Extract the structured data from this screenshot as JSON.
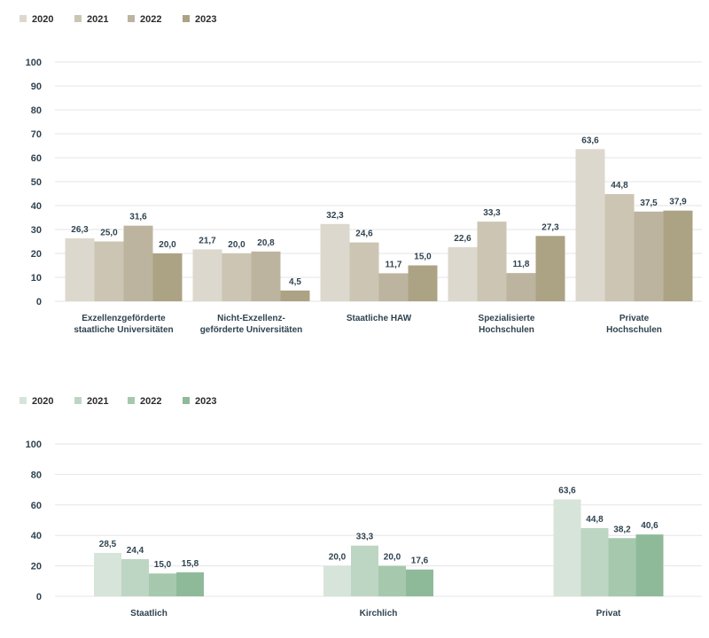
{
  "chart_data": [
    {
      "type": "bar",
      "categories": [
        [
          "Exzellenzgeförderte",
          "staatliche Universitäten"
        ],
        [
          "Nicht-Exzellenz-",
          "geförderte Universitäten"
        ],
        [
          "Staatliche HAW"
        ],
        [
          "Spezialisierte",
          "Hochschulen"
        ],
        [
          "Private",
          "Hochschulen"
        ]
      ],
      "series": [
        {
          "name": "2020",
          "color": "#ddd8cd",
          "values": [
            26.3,
            21.7,
            32.3,
            22.6,
            63.6
          ],
          "labels": [
            "26,3",
            "21,7",
            "32,3",
            "22,6",
            "63,6"
          ]
        },
        {
          "name": "2021",
          "color": "#ccc5b3",
          "values": [
            25.0,
            20.0,
            24.6,
            33.3,
            44.8
          ],
          "labels": [
            "25,0",
            "20,0",
            "24,6",
            "33,3",
            "44,8"
          ]
        },
        {
          "name": "2022",
          "color": "#bcb49f",
          "values": [
            31.6,
            20.8,
            11.7,
            11.8,
            37.5
          ],
          "labels": [
            "31,6",
            "20,8",
            "11,7",
            "11,8",
            "37,5"
          ]
        },
        {
          "name": "2023",
          "color": "#aca384",
          "values": [
            20.0,
            4.5,
            15.0,
            27.3,
            37.9
          ],
          "labels": [
            "20,0",
            "4,5",
            "15,0",
            "27,3",
            "37,9"
          ]
        }
      ],
      "yticks": [
        "0",
        "10",
        "20",
        "30",
        "40",
        "50",
        "60",
        "70",
        "80",
        "90",
        "100"
      ],
      "ylim": [
        0,
        100
      ],
      "grid": true,
      "legend": "top-left"
    },
    {
      "type": "bar",
      "categories": [
        [
          "Staatlich"
        ],
        [
          "Kirchlich"
        ],
        [
          "Privat"
        ]
      ],
      "series": [
        {
          "name": "2020",
          "color": "#d6e4d9",
          "values": [
            28.5,
            20.0,
            63.6
          ],
          "labels": [
            "28,5",
            "20,0",
            "63,6"
          ]
        },
        {
          "name": "2021",
          "color": "#bdd6c3",
          "values": [
            24.4,
            33.3,
            44.8
          ],
          "labels": [
            "24,4",
            "33,3",
            "44,8"
          ]
        },
        {
          "name": "2022",
          "color": "#a6c9ae",
          "values": [
            15.0,
            20.0,
            38.2
          ],
          "labels": [
            "15,0",
            "20,0",
            "38,2"
          ]
        },
        {
          "name": "2023",
          "color": "#8fba9a",
          "values": [
            15.8,
            17.6,
            40.6
          ],
          "labels": [
            "15,8",
            "17,6",
            "40,6"
          ]
        }
      ],
      "yticks": [
        "0",
        "20",
        "40",
        "60",
        "80",
        "100"
      ],
      "ylim": [
        0,
        100
      ],
      "grid": true,
      "legend": "top-left"
    }
  ]
}
